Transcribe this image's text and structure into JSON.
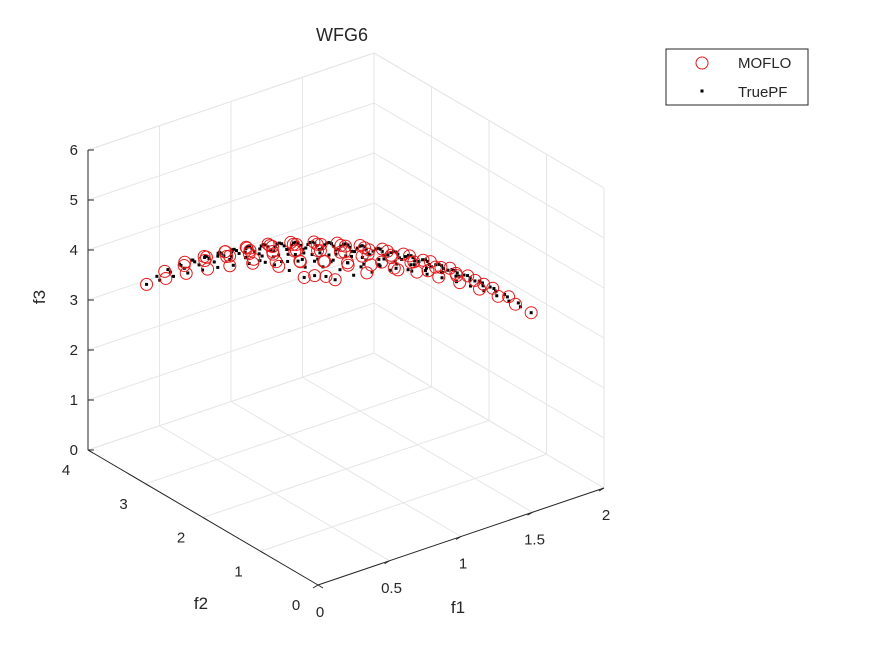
{
  "chart_data": {
    "type": "scatter3d",
    "title": "WFG6",
    "xlabel": "f1",
    "ylabel": "f2",
    "zlabel": "f3",
    "xlim": [
      0,
      2
    ],
    "ylim": [
      0,
      4
    ],
    "zlim": [
      0,
      6
    ],
    "xticks": [
      "0",
      "0.5",
      "1",
      "1.5",
      "2"
    ],
    "yticks": [
      "0",
      "1",
      "2",
      "3",
      "4"
    ],
    "zticks": [
      "0",
      "1",
      "2",
      "3",
      "4",
      "5",
      "6"
    ],
    "grid": true,
    "legend_position": "top-right",
    "front": {
      "shape": "ellipsoid octant",
      "f1_max": 2,
      "f2_max": 4,
      "f3_max": 6,
      "f3_shown_max": 4
    },
    "series": [
      {
        "name": "MOFLO",
        "marker": "open-circle",
        "color": "#e41a1c",
        "sampling": {
          "rings": 8,
          "points_on_outer_ring": 18
        }
      },
      {
        "name": "TruePF",
        "marker": "dot",
        "color": "#000000",
        "sampling": {
          "rings": 13,
          "points_on_outer_ring": 26
        }
      }
    ]
  }
}
